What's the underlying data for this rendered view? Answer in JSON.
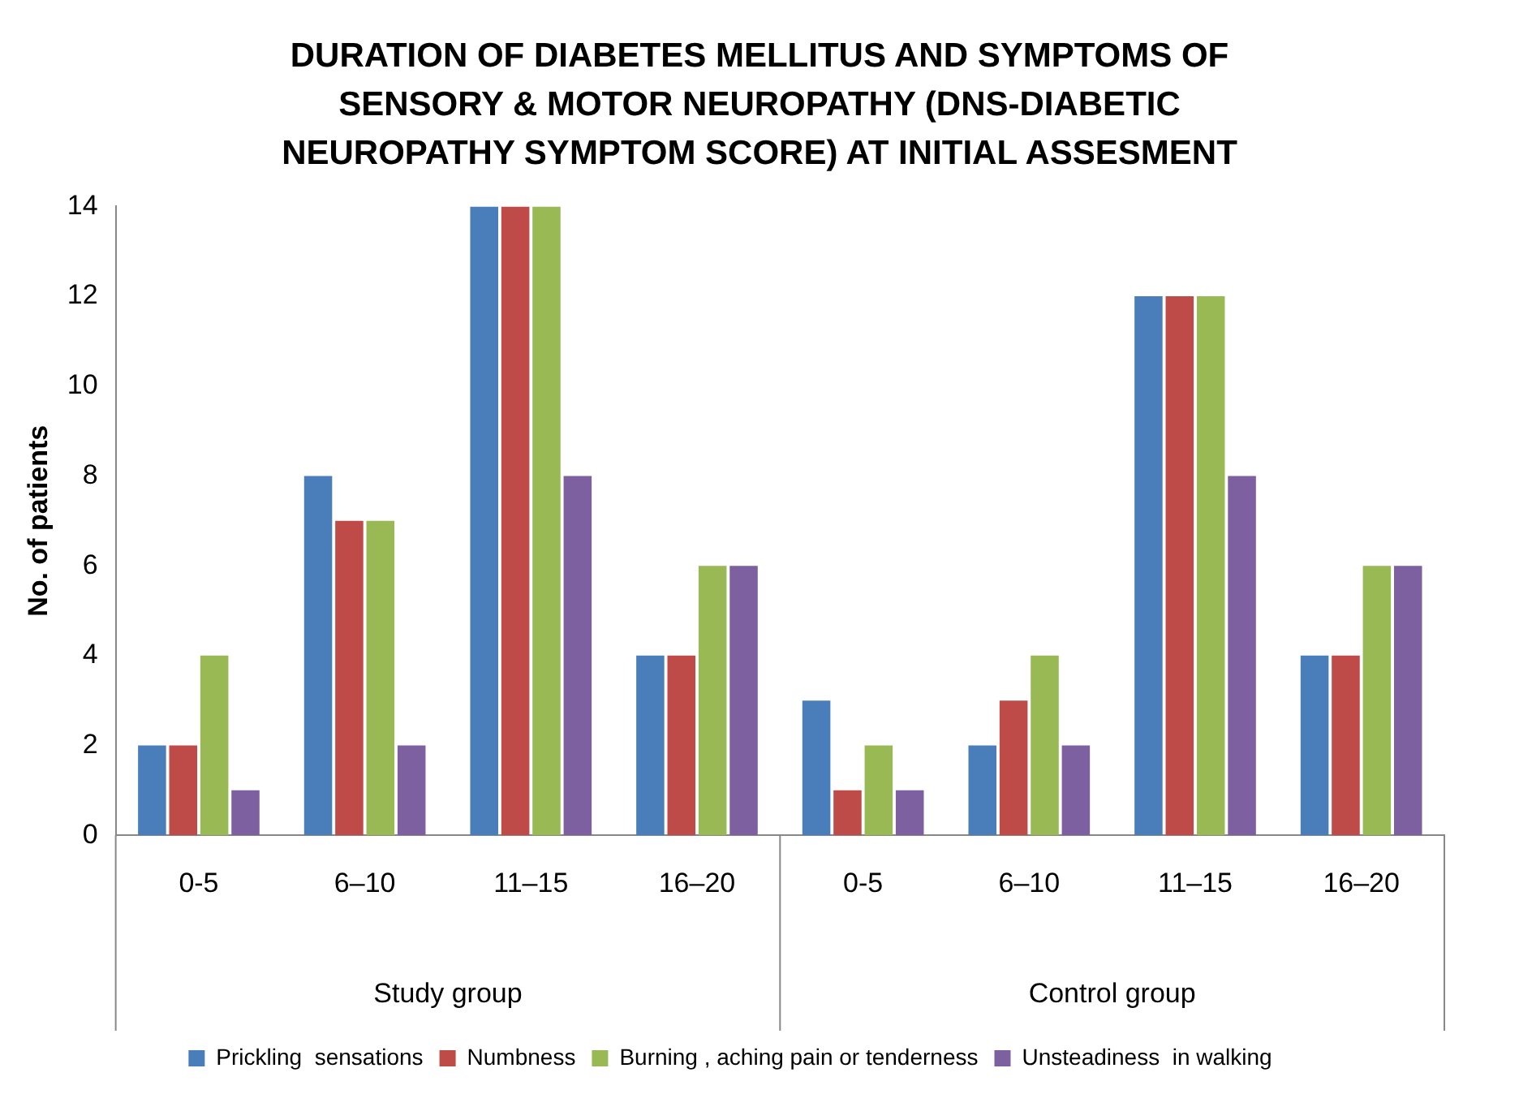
{
  "chart_data": {
    "type": "bar",
    "title": "DURATION OF DIABETES MELLITUS AND SYMPTOMS OF SENSORY & MOTOR NEUROPATHY (DNS-DIABETIC NEUROPATHY SYMPTOM SCORE) AT INITIAL ASSESMENT",
    "ylabel": "No. of patients",
    "categories": [
      "0-5",
      "6–10",
      "11–15",
      "16–20",
      "0-5",
      "6–10",
      "11–15",
      "16–20"
    ],
    "series": [
      {
        "name": "Prickling  sensations",
        "color": "#4a7ebb",
        "values": [
          2,
          8,
          14,
          4,
          3,
          2,
          12,
          4
        ]
      },
      {
        "name": "Numbness",
        "color": "#be4b48",
        "values": [
          2,
          7,
          14,
          4,
          1,
          3,
          12,
          4
        ]
      },
      {
        "name": "Burning , aching pain or tenderness",
        "color": "#98b954",
        "values": [
          4,
          7,
          14,
          6,
          2,
          4,
          12,
          6
        ]
      },
      {
        "name": "Unsteadiness  in walking",
        "color": "#7d60a0",
        "values": [
          1,
          2,
          8,
          6,
          1,
          2,
          8,
          6
        ]
      }
    ],
    "annotations": [
      "Study group",
      "Control group"
    ],
    "ylim": [
      0,
      14
    ],
    "yticks": [
      0,
      2,
      4,
      6,
      8,
      10,
      12,
      14
    ],
    "grid": false,
    "legend": "bottom"
  }
}
